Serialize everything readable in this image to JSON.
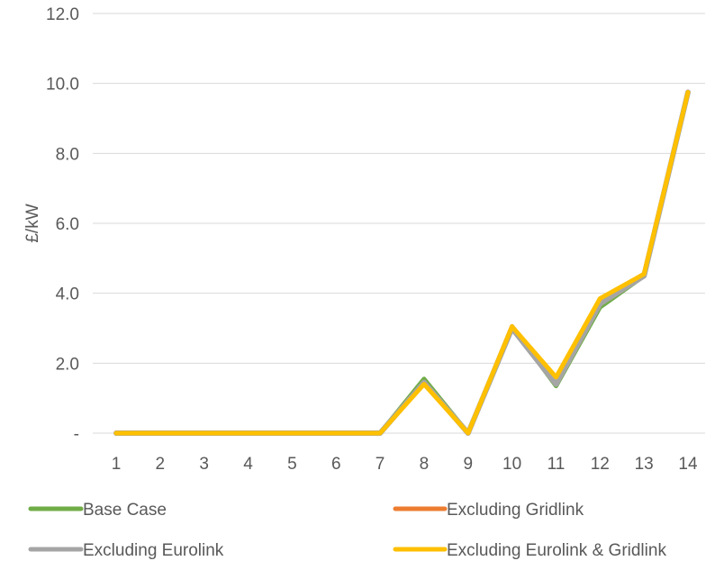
{
  "chart_data": {
    "type": "line",
    "title": "",
    "xlabel": "",
    "ylabel": "£/kW",
    "x": [
      1,
      2,
      3,
      4,
      5,
      6,
      7,
      8,
      9,
      10,
      11,
      12,
      13,
      14
    ],
    "x_tick_labels": [
      "1",
      "2",
      "3",
      "4",
      "5",
      "6",
      "7",
      "8",
      "9",
      "10",
      "11",
      "12",
      "13",
      "14"
    ],
    "ylim": [
      0,
      12
    ],
    "y_ticks": [
      0,
      2,
      4,
      6,
      8,
      10,
      12
    ],
    "y_tick_labels": [
      "-",
      "2.0",
      "4.0",
      "6.0",
      "8.0",
      "10.0",
      "12.0"
    ],
    "grid": "horizontal",
    "legend_position": "bottom",
    "series": [
      {
        "name": "Base Case",
        "color": "#70AD47",
        "values": [
          0,
          0,
          0,
          0,
          0,
          0,
          0,
          1.55,
          0,
          3.05,
          1.35,
          3.6,
          4.5,
          9.75
        ]
      },
      {
        "name": "Excluding Gridlink",
        "color": "#ED7D31",
        "values": [
          0,
          0,
          0,
          0,
          0,
          0,
          0,
          1.45,
          0,
          3.05,
          1.55,
          3.8,
          4.55,
          9.75
        ]
      },
      {
        "name": "Excluding Eurolink",
        "color": "#A5A5A5",
        "values": [
          0,
          0,
          0,
          0,
          0,
          0,
          0,
          1.45,
          0,
          3.0,
          1.4,
          3.7,
          4.5,
          9.75
        ]
      },
      {
        "name": "Excluding Eurolink & Gridlink",
        "color": "#FFC000",
        "values": [
          0,
          0,
          0,
          0,
          0,
          0,
          0,
          1.4,
          0,
          3.05,
          1.6,
          3.85,
          4.55,
          9.75
        ]
      }
    ]
  }
}
